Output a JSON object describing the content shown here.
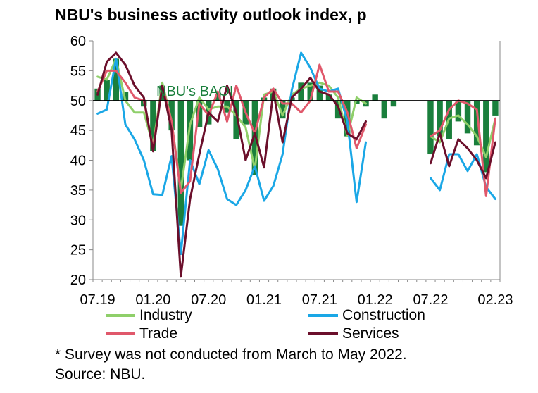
{
  "title": "NBU's business activity outlook index, p",
  "note": "* Survey was not conducted from March to May 2022.",
  "source": "Source: NBU.",
  "chart_data": {
    "type": "bar+line",
    "title": "NBU's business activity outlook index, p",
    "xlabel": "",
    "ylabel": "",
    "ylim": [
      20,
      60
    ],
    "yticks": [
      20,
      25,
      30,
      35,
      40,
      45,
      50,
      55,
      60
    ],
    "xtick_labels": [
      "07.19",
      "01.20",
      "07.20",
      "01.21",
      "07.21",
      "01.22",
      "07.22",
      "02.23"
    ],
    "bar_baseline": 50,
    "grid": false,
    "legend_position": "bottom",
    "colors": {
      "bars": "#1a7f3c",
      "industry": "#8fcf6a",
      "construction": "#1aa7e6",
      "trade": "#e0586b",
      "services": "#6b0f2b"
    },
    "bar_series": {
      "name": "NBU's BAOI",
      "x": [
        0,
        1,
        2,
        3,
        4,
        5,
        6,
        7,
        8,
        9,
        10,
        11,
        12,
        13,
        14,
        15,
        16,
        17,
        18,
        19,
        20,
        21,
        22,
        23,
        24,
        25,
        26,
        27,
        28,
        29,
        30,
        31,
        32,
        36,
        37,
        38,
        39,
        40,
        41,
        42,
        43
      ],
      "values": [
        52.0,
        53.5,
        57.0,
        51.5,
        50.0,
        49.0,
        41.5,
        52.5,
        45.0,
        29.0,
        40.0,
        45.5,
        46.0,
        51.0,
        48.0,
        43.5,
        46.0,
        37.5,
        50.5,
        52.0,
        47.0,
        50.5,
        53.0,
        53.0,
        52.5,
        51.0,
        47.0,
        44.0,
        49.5,
        49.0,
        51.0,
        47.0,
        49.0,
        41.0,
        44.0,
        43.5,
        46.5,
        44.5,
        42.5,
        38.0,
        47.5
      ]
    },
    "series": [
      {
        "name": "Industry",
        "x": [
          0,
          1,
          2,
          3,
          4,
          5,
          6,
          7,
          8,
          9,
          10,
          11,
          12,
          13,
          14,
          15,
          16,
          17,
          18,
          19,
          20,
          21,
          22,
          23,
          24,
          25,
          26,
          27,
          28,
          29,
          36,
          37,
          38,
          39,
          40,
          41,
          42,
          43
        ],
        "values": [
          54.0,
          53.5,
          57.0,
          50.0,
          48.0,
          48.0,
          42.5,
          53.0,
          46.5,
          35.0,
          46.0,
          50.5,
          48.5,
          49.0,
          49.0,
          47.5,
          45.5,
          38.5,
          51.0,
          51.5,
          47.5,
          51.0,
          52.0,
          52.5,
          53.0,
          52.5,
          50.5,
          44.0,
          50.5,
          49.5,
          44.0,
          43.0,
          47.0,
          47.5,
          46.0,
          44.0,
          40.5,
          47.0
        ]
      },
      {
        "name": "Construction",
        "x": [
          0,
          1,
          2,
          3,
          4,
          5,
          6,
          7,
          8,
          9,
          10,
          11,
          12,
          13,
          14,
          15,
          16,
          17,
          18,
          19,
          20,
          21,
          22,
          23,
          24,
          25,
          26,
          27,
          28,
          29,
          36,
          37,
          38,
          39,
          40,
          41,
          42,
          43
        ],
        "values": [
          47.8,
          48.5,
          57.0,
          46.0,
          43.5,
          40.0,
          34.3,
          34.2,
          40.7,
          24.3,
          40.0,
          36.0,
          41.7,
          38.5,
          33.5,
          32.5,
          35.0,
          39.0,
          33.2,
          35.7,
          41.0,
          51.8,
          58.0,
          55.5,
          52.0,
          51.5,
          52.0,
          46.5,
          33.0,
          43.0,
          37.0,
          35.0,
          41.0,
          41.0,
          38.2,
          41.0,
          35.5,
          33.5
        ]
      },
      {
        "name": "Trade",
        "x": [
          0,
          1,
          2,
          3,
          4,
          5,
          6,
          7,
          8,
          9,
          10,
          11,
          12,
          13,
          14,
          15,
          16,
          17,
          18,
          19,
          20,
          21,
          22,
          23,
          24,
          25,
          26,
          27,
          28,
          29,
          36,
          37,
          38,
          39,
          40,
          41,
          42,
          43
        ],
        "values": [
          51.5,
          55.0,
          55.0,
          53.0,
          50.5,
          50.0,
          42.0,
          52.5,
          46.5,
          34.5,
          36.5,
          49.5,
          47.5,
          51.5,
          46.5,
          52.5,
          48.0,
          44.5,
          50.5,
          52.0,
          49.5,
          49.5,
          48.0,
          50.0,
          56.0,
          51.5,
          51.5,
          48.0,
          42.0,
          46.0,
          44.0,
          45.0,
          48.5,
          50.0,
          49.5,
          48.5,
          34.0,
          47.0
        ]
      },
      {
        "name": "Services",
        "x": [
          0,
          1,
          2,
          3,
          4,
          5,
          6,
          7,
          8,
          9,
          10,
          11,
          12,
          13,
          14,
          15,
          16,
          17,
          18,
          19,
          20,
          21,
          22,
          23,
          24,
          25,
          26,
          27,
          28,
          29,
          36,
          37,
          38,
          39,
          40,
          41,
          42,
          43
        ],
        "values": [
          51.0,
          56.5,
          58.0,
          56.0,
          52.5,
          50.5,
          41.5,
          52.5,
          45.0,
          20.5,
          33.5,
          41.0,
          48.0,
          46.5,
          52.5,
          48.0,
          40.0,
          44.5,
          38.8,
          51.5,
          43.0,
          50.5,
          52.0,
          53.8,
          51.5,
          51.0,
          49.0,
          44.5,
          43.5,
          46.5,
          39.5,
          44.5,
          39.0,
          43.5,
          42.0,
          40.0,
          37.0,
          43.0
        ]
      }
    ]
  }
}
